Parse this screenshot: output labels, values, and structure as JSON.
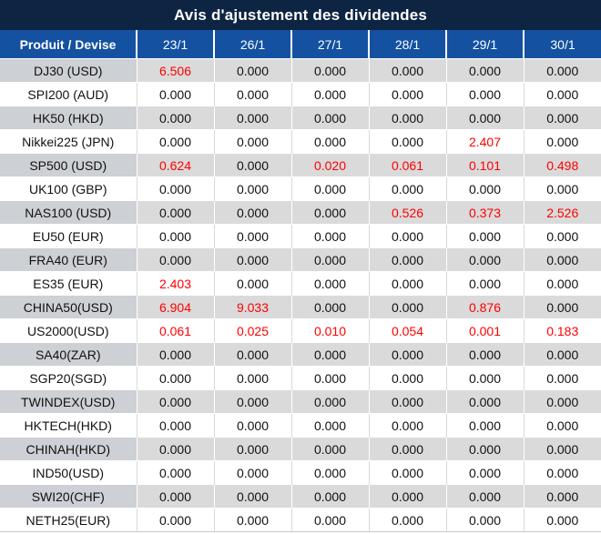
{
  "title": "Avis d'ajustement des dividendes",
  "colors": {
    "title_bg": "#0e2443",
    "header_bg": "#1451a1",
    "band_bg": "#dadada",
    "band_product_bg": "#cdd0d4",
    "negative_red": "#ff0000",
    "text_black": "#111111"
  },
  "table": {
    "product_header": "Produit / Devise",
    "date_headers": [
      "23/1",
      "26/1",
      "27/1",
      "28/1",
      "29/1",
      "30/1"
    ],
    "rows": [
      {
        "product": "DJ30 (USD)",
        "values": [
          "6.506",
          "0.000",
          "0.000",
          "0.000",
          "0.000",
          "0.000"
        ],
        "red": [
          1,
          0,
          0,
          0,
          0,
          0
        ]
      },
      {
        "product": "SPI200 (AUD)",
        "values": [
          "0.000",
          "0.000",
          "0.000",
          "0.000",
          "0.000",
          "0.000"
        ],
        "red": [
          0,
          0,
          0,
          0,
          0,
          0
        ]
      },
      {
        "product": "HK50 (HKD)",
        "values": [
          "0.000",
          "0.000",
          "0.000",
          "0.000",
          "0.000",
          "0.000"
        ],
        "red": [
          0,
          0,
          0,
          0,
          0,
          0
        ]
      },
      {
        "product": "Nikkei225 (JPN)",
        "values": [
          "0.000",
          "0.000",
          "0.000",
          "0.000",
          "2.407",
          "0.000"
        ],
        "red": [
          0,
          0,
          0,
          0,
          1,
          0
        ]
      },
      {
        "product": "SP500 (USD)",
        "values": [
          "0.624",
          "0.000",
          "0.020",
          "0.061",
          "0.101",
          "0.498"
        ],
        "red": [
          1,
          0,
          1,
          1,
          1,
          1
        ]
      },
      {
        "product": "UK100 (GBP)",
        "values": [
          "0.000",
          "0.000",
          "0.000",
          "0.000",
          "0.000",
          "0.000"
        ],
        "red": [
          0,
          0,
          0,
          0,
          0,
          0
        ]
      },
      {
        "product": "NAS100 (USD)",
        "values": [
          "0.000",
          "0.000",
          "0.000",
          "0.526",
          "0.373",
          "2.526"
        ],
        "red": [
          0,
          0,
          0,
          1,
          1,
          1
        ]
      },
      {
        "product": "EU50 (EUR)",
        "values": [
          "0.000",
          "0.000",
          "0.000",
          "0.000",
          "0.000",
          "0.000"
        ],
        "red": [
          0,
          0,
          0,
          0,
          0,
          0
        ]
      },
      {
        "product": "FRA40 (EUR)",
        "values": [
          "0.000",
          "0.000",
          "0.000",
          "0.000",
          "0.000",
          "0.000"
        ],
        "red": [
          0,
          0,
          0,
          0,
          0,
          0
        ]
      },
      {
        "product": "ES35 (EUR)",
        "values": [
          "2.403",
          "0.000",
          "0.000",
          "0.000",
          "0.000",
          "0.000"
        ],
        "red": [
          1,
          0,
          0,
          0,
          0,
          0
        ]
      },
      {
        "product": "CHINA50(USD)",
        "values": [
          "6.904",
          "9.033",
          "0.000",
          "0.000",
          "0.876",
          "0.000"
        ],
        "red": [
          1,
          1,
          0,
          0,
          1,
          0
        ]
      },
      {
        "product": "US2000(USD)",
        "values": [
          "0.061",
          "0.025",
          "0.010",
          "0.054",
          "0.001",
          "0.183"
        ],
        "red": [
          1,
          1,
          1,
          1,
          1,
          1
        ]
      },
      {
        "product": "SA40(ZAR)",
        "values": [
          "0.000",
          "0.000",
          "0.000",
          "0.000",
          "0.000",
          "0.000"
        ],
        "red": [
          0,
          0,
          0,
          0,
          0,
          0
        ]
      },
      {
        "product": "SGP20(SGD)",
        "values": [
          "0.000",
          "0.000",
          "0.000",
          "0.000",
          "0.000",
          "0.000"
        ],
        "red": [
          0,
          0,
          0,
          0,
          0,
          0
        ]
      },
      {
        "product": "TWINDEX(USD)",
        "values": [
          "0.000",
          "0.000",
          "0.000",
          "0.000",
          "0.000",
          "0.000"
        ],
        "red": [
          0,
          0,
          0,
          0,
          0,
          0
        ]
      },
      {
        "product": "HKTECH(HKD)",
        "values": [
          "0.000",
          "0.000",
          "0.000",
          "0.000",
          "0.000",
          "0.000"
        ],
        "red": [
          0,
          0,
          0,
          0,
          0,
          0
        ]
      },
      {
        "product": "CHINAH(HKD)",
        "values": [
          "0.000",
          "0.000",
          "0.000",
          "0.000",
          "0.000",
          "0.000"
        ],
        "red": [
          0,
          0,
          0,
          0,
          0,
          0
        ]
      },
      {
        "product": "IND50(USD)",
        "values": [
          "0.000",
          "0.000",
          "0.000",
          "0.000",
          "0.000",
          "0.000"
        ],
        "red": [
          0,
          0,
          0,
          0,
          0,
          0
        ]
      },
      {
        "product": "SWI20(CHF)",
        "values": [
          "0.000",
          "0.000",
          "0.000",
          "0.000",
          "0.000",
          "0.000"
        ],
        "red": [
          0,
          0,
          0,
          0,
          0,
          0
        ]
      },
      {
        "product": "NETH25(EUR)",
        "values": [
          "0.000",
          "0.000",
          "0.000",
          "0.000",
          "0.000",
          "0.000"
        ],
        "red": [
          0,
          0,
          0,
          0,
          0,
          0
        ]
      }
    ]
  }
}
